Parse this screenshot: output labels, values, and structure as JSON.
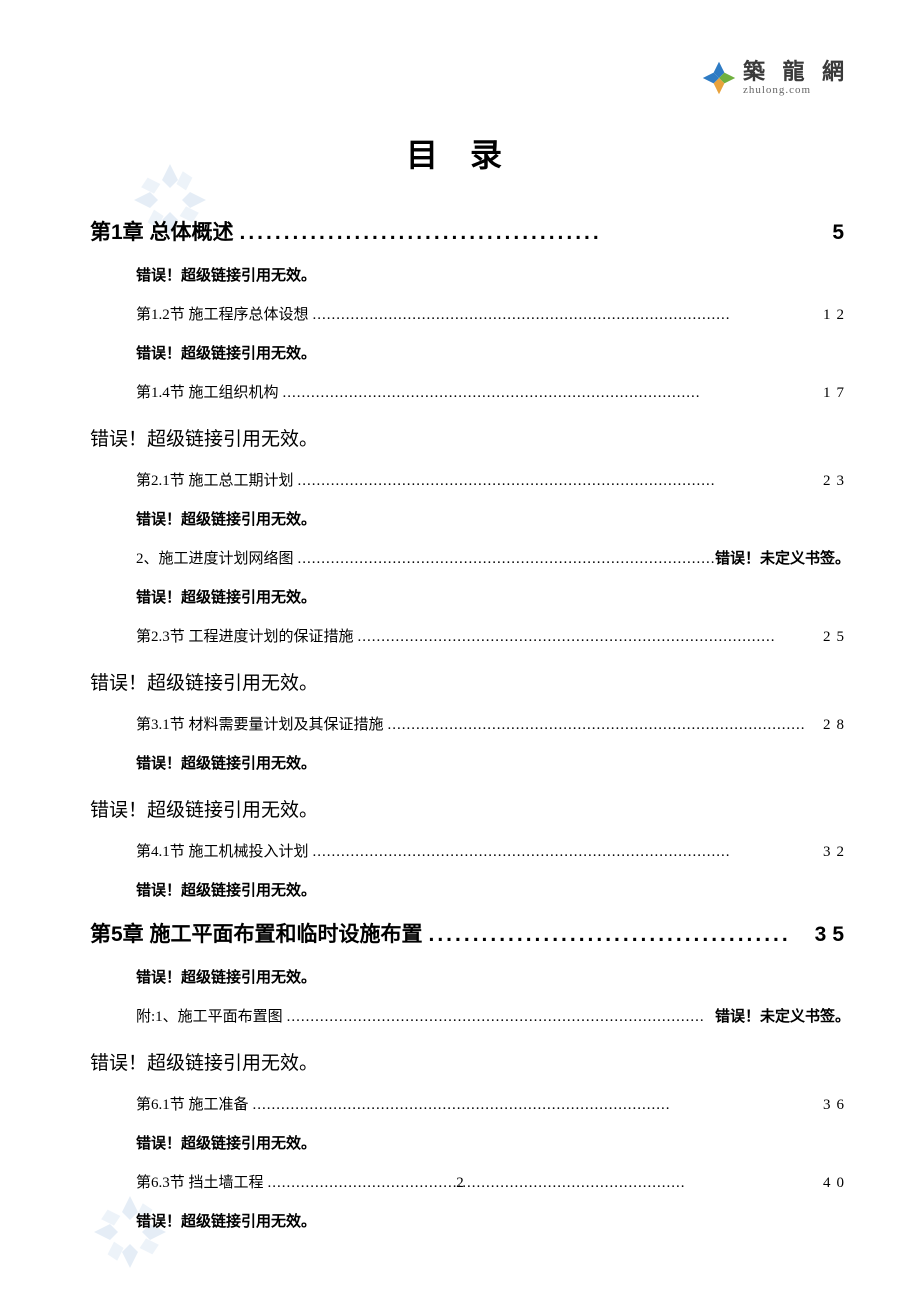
{
  "logo": {
    "cn": "築 龍 網",
    "en": "zhulong.com",
    "colors": {
      "blue": "#2e7bc4",
      "green": "#6fb03e",
      "orange": "#e8a23c",
      "red": "#d44a3a"
    }
  },
  "title": "目录",
  "page_number": "2",
  "dots_long": "........................................................................................",
  "dots_bold": ".........................................",
  "error_text": "错误！超级链接引用无效。",
  "error_bookmark": "错误！未定义书签。",
  "entries": [
    {
      "type": "chapter",
      "label": "第1章  总体概述",
      "page": "5"
    },
    {
      "type": "error_sub"
    },
    {
      "type": "section",
      "label": "第1.2节  施工程序总体设想",
      "page": "12"
    },
    {
      "type": "error_sub"
    },
    {
      "type": "section",
      "label": "第1.4节  施工组织机构",
      "page": "17"
    },
    {
      "type": "error_chapter"
    },
    {
      "type": "section",
      "label": "第2.1节  施工总工期计划",
      "page": "23"
    },
    {
      "type": "error_sub"
    },
    {
      "type": "section_err",
      "label": "2、施工进度计划网络图"
    },
    {
      "type": "error_sub"
    },
    {
      "type": "section",
      "label": "第2.3节  工程进度计划的保证措施",
      "page": "25"
    },
    {
      "type": "error_chapter"
    },
    {
      "type": "section",
      "label": "第3.1节  材料需要量计划及其保证措施",
      "page": "28"
    },
    {
      "type": "error_sub"
    },
    {
      "type": "error_chapter"
    },
    {
      "type": "section",
      "label": "第4.1节  施工机械投入计划",
      "page": "32"
    },
    {
      "type": "error_sub"
    },
    {
      "type": "chapter",
      "label": "第5章  施工平面布置和临时设施布置",
      "page": "35"
    },
    {
      "type": "error_sub"
    },
    {
      "type": "section_err",
      "label": "附:1、施工平面布置图"
    },
    {
      "type": "error_chapter"
    },
    {
      "type": "section",
      "label": "第6.1节  施工准备",
      "page": "36"
    },
    {
      "type": "error_sub"
    },
    {
      "type": "section",
      "label": "第6.3节  挡土墙工程",
      "page": "40"
    },
    {
      "type": "error_sub"
    }
  ]
}
